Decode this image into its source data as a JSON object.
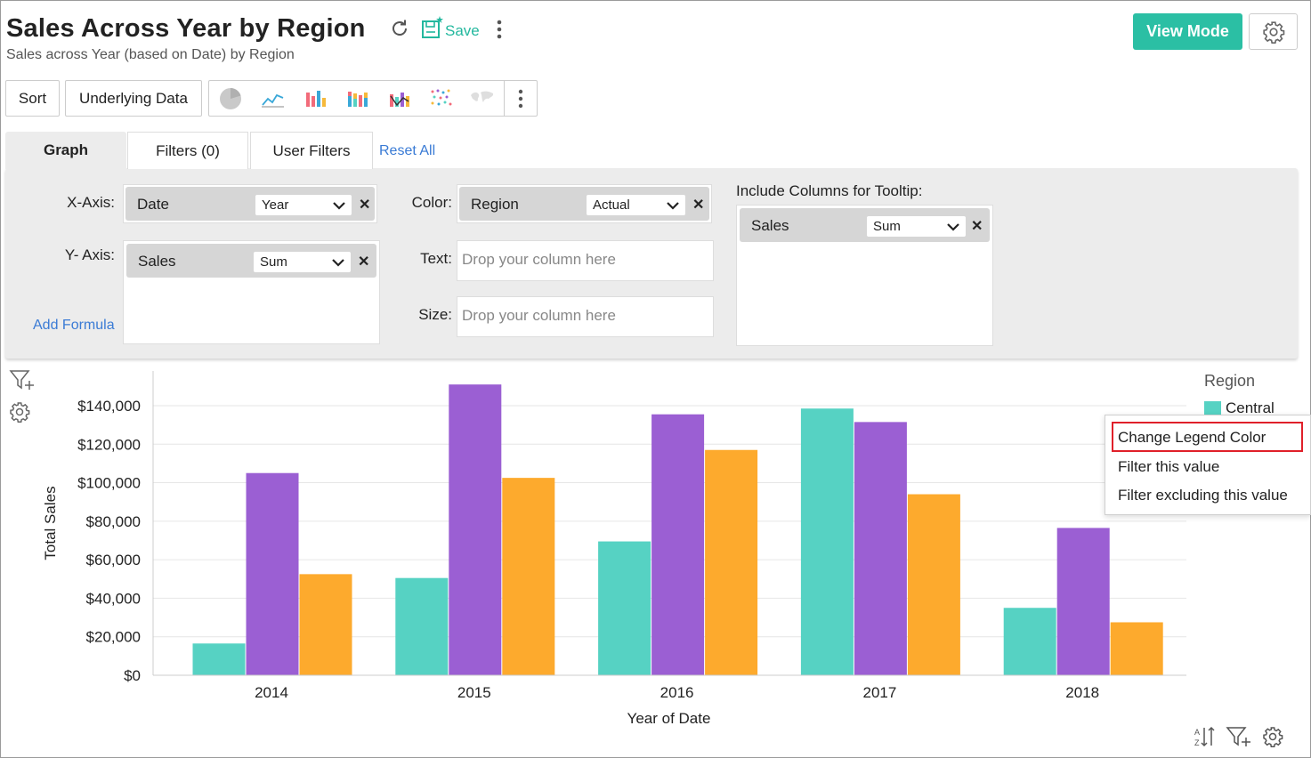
{
  "header": {
    "title": "Sales Across Year by Region",
    "subtitle": "Sales across Year (based on Date) by Region",
    "save_label": "Save",
    "view_mode_label": "View Mode"
  },
  "toolbar": {
    "sort_label": "Sort",
    "underlying_label": "Underlying Data",
    "chart_type_icons": [
      "pie-chart-icon",
      "line-chart-icon",
      "bar-chart-icon",
      "stacked-bar-icon",
      "combo-chart-icon",
      "scatter-chart-icon",
      "map-chart-icon",
      "more-icon"
    ]
  },
  "tabs": {
    "graph": "Graph",
    "filters": "Filters (0)",
    "user_filters": "User Filters",
    "reset_all": "Reset All"
  },
  "shelves": {
    "x_axis": {
      "label": "X-Axis:",
      "column": "Date",
      "function": "Year"
    },
    "y_axis": {
      "label": "Y- Axis:",
      "column": "Sales",
      "function": "Sum"
    },
    "add_formula": "Add Formula",
    "color": {
      "label": "Color:",
      "column": "Region",
      "function": "Actual"
    },
    "text": {
      "label": "Text:",
      "placeholder": "Drop your column here"
    },
    "size": {
      "label": "Size:",
      "placeholder": "Drop your column here"
    },
    "tooltip": {
      "label": "Include Columns for Tooltip:",
      "column": "Sales",
      "function": "Sum"
    }
  },
  "legend": {
    "title": "Region",
    "items": [
      {
        "name": "Central",
        "color": "#56d2c3"
      }
    ]
  },
  "context_menu": {
    "items": [
      "Change Legend Color",
      "Filter this value",
      "Filter excluding this value"
    ]
  },
  "colors": {
    "accent": "#2bbfa4",
    "link": "#3a7bd5",
    "highlight": "#e0202a"
  },
  "chart_data": {
    "type": "bar",
    "categories": [
      "2014",
      "2015",
      "2016",
      "2017",
      "2018"
    ],
    "series": [
      {
        "name": "Central",
        "color": "#56d2c3",
        "values": [
          16500,
          50500,
          69500,
          138500,
          35000
        ]
      },
      {
        "color": "#9b5fd3",
        "values": [
          105000,
          151000,
          135500,
          131500,
          76500
        ]
      },
      {
        "color": "#fdaa2d",
        "values": [
          52500,
          102500,
          117000,
          94000,
          27500
        ]
      }
    ],
    "xlabel": "Year of Date",
    "ylabel": "Total Sales",
    "ylim": [
      0,
      158000
    ],
    "yticks": [
      0,
      20000,
      40000,
      60000,
      80000,
      100000,
      120000,
      140000
    ],
    "ytick_labels": [
      "$0",
      "$20,000",
      "$40,000",
      "$60,000",
      "$80,000",
      "$100,000",
      "$120,000",
      "$140,000"
    ],
    "grid": true
  }
}
